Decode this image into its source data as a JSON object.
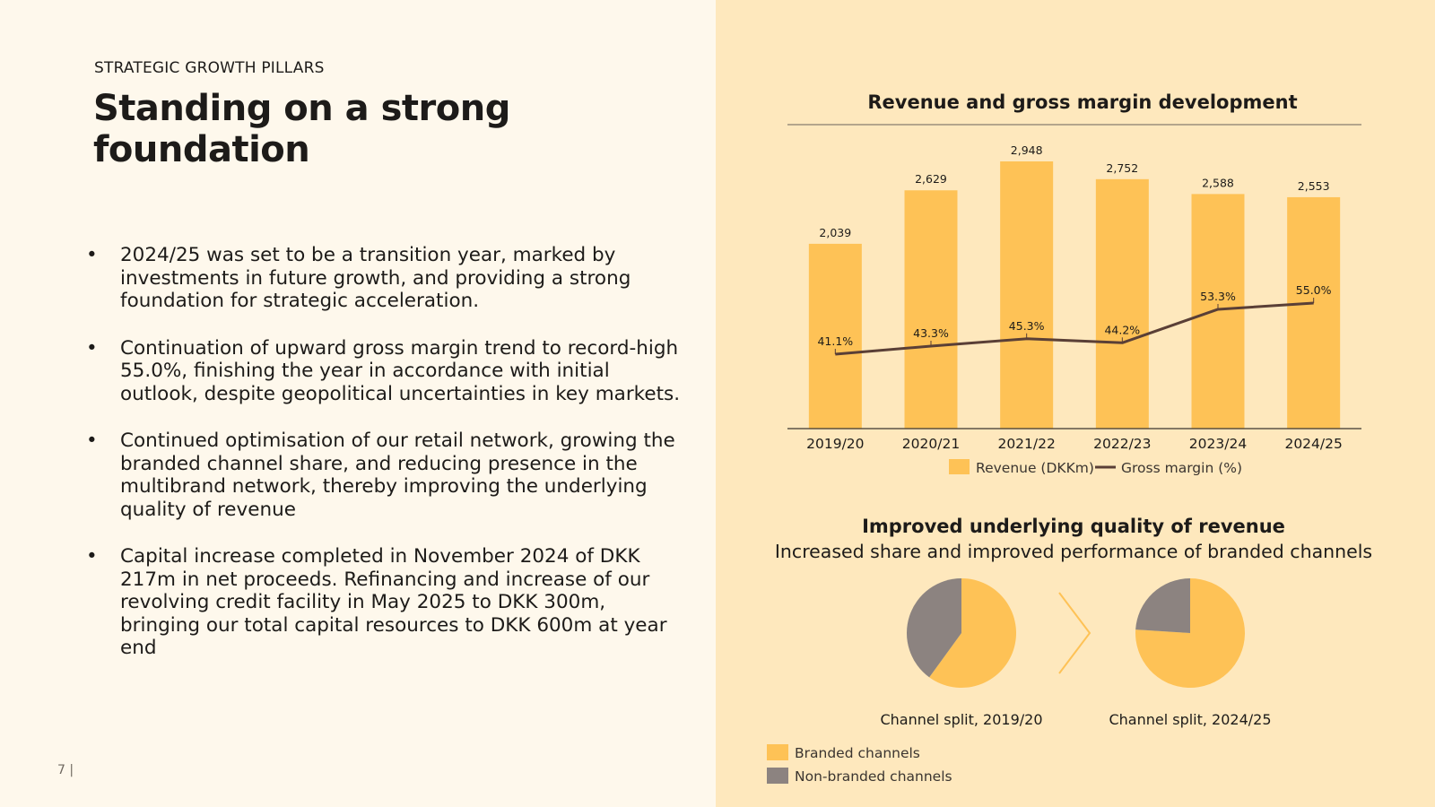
{
  "slide": {
    "eyebrow": "STRATEGIC GROWTH PILLARS",
    "title": "Standing on a strong foundation",
    "page_number": "7 |",
    "bullets": [
      "2024/25 was set to be a transition year, marked by investments in future growth, and providing a strong foundation for strategic acceleration.",
      "Continuation of upward gross margin trend to record-high 55.0%, finishing the year in accordance with initial outlook, despite geopolitical uncertainties in key markets.",
      "Continued optimisation of our retail network, growing the branded channel share, and reducing presence in the multibrand network, thereby improving the underlying quality of revenue",
      "Capital increase completed in November 2024 of DKK 217m in net proceeds. Refinancing and increase of our revolving credit facility in May 2025 to DKK 300m, bringing our total capital resources to DKK 600m at year end"
    ]
  },
  "colors": {
    "left_bg": "#fef8ec",
    "right_bg": "#fee8bd",
    "bar": "#fec256",
    "line": "#5a3f36",
    "non_branded": "#8c8380",
    "text": "#1d1b19"
  },
  "chart_data": [
    {
      "type": "bar",
      "title": "Revenue and gross margin development",
      "categories": [
        "2019/20",
        "2020/21",
        "2021/22",
        "2022/23",
        "2023/24",
        "2024/25"
      ],
      "series": [
        {
          "name": "Revenue (DKKm)",
          "type": "bar",
          "values": [
            2039,
            2629,
            2948,
            2752,
            2588,
            2553
          ],
          "labels": [
            "2,039",
            "2,629",
            "2,948",
            "2,752",
            "2,588",
            "2,553"
          ]
        },
        {
          "name": "Gross margin (%)",
          "type": "line",
          "values": [
            41.1,
            43.3,
            45.3,
            44.2,
            53.3,
            55.0
          ],
          "labels": [
            "41.1%",
            "43.3%",
            "45.3%",
            "44.2%",
            "53.3%",
            "55.0%"
          ]
        }
      ],
      "legend": "bottom"
    },
    {
      "type": "pie",
      "title": "Improved underlying quality of revenue",
      "subtitle": "Increased share and improved performance of branded channels",
      "pies": [
        {
          "label": "Channel split, 2019/20",
          "slices": [
            {
              "name": "Branded channels",
              "value": 60
            },
            {
              "name": "Non-branded channels",
              "value": 40
            }
          ]
        },
        {
          "label": "Channel split, 2024/25",
          "slices": [
            {
              "name": "Branded channels",
              "value": 76
            },
            {
              "name": "Non-branded channels",
              "value": 24
            }
          ]
        }
      ],
      "legend_items": [
        "Branded channels",
        "Non-branded channels"
      ],
      "legend": "bottom-left"
    }
  ]
}
